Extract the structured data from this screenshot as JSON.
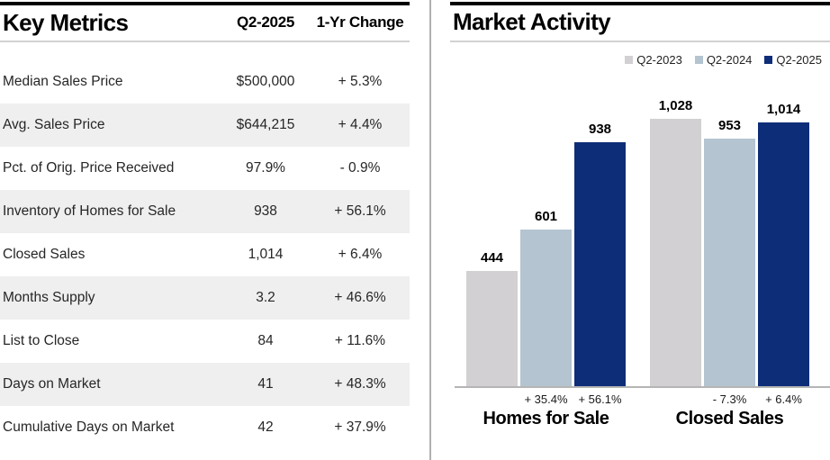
{
  "key_metrics": {
    "title": "Key Metrics",
    "columns": [
      "Q2-2025",
      "1-Yr Change"
    ],
    "rows": [
      {
        "label": "Median Sales Price",
        "value": "$500,000",
        "change": "+ 5.3%"
      },
      {
        "label": "Avg. Sales Price",
        "value": "$644,215",
        "change": "+ 4.4%"
      },
      {
        "label": "Pct. of Orig. Price Received",
        "value": "97.9%",
        "change": "- 0.9%"
      },
      {
        "label": "Inventory of Homes for Sale",
        "value": "938",
        "change": "+ 56.1%"
      },
      {
        "label": "Closed Sales",
        "value": "1,014",
        "change": "+ 6.4%"
      },
      {
        "label": "Months Supply",
        "value": "3.2",
        "change": "+ 46.6%"
      },
      {
        "label": "List to Close",
        "value": "84",
        "change": "+ 11.6%"
      },
      {
        "label": "Days on Market",
        "value": "41",
        "change": "+ 48.3%"
      },
      {
        "label": "Cumulative Days on Market",
        "value": "42",
        "change": "+ 37.9%"
      }
    ]
  },
  "chart_data": {
    "type": "bar",
    "title": "Market Activity",
    "categories": [
      "Homes for Sale",
      "Closed Sales"
    ],
    "series": [
      {
        "name": "Q2-2023",
        "color": "#d3d0d4",
        "values": [
          444,
          1028
        ]
      },
      {
        "name": "Q2-2024",
        "color": "#b4c4d1",
        "values": [
          601,
          953
        ]
      },
      {
        "name": "Q2-2025",
        "color": "#0e2d78",
        "values": [
          938,
          1014
        ]
      }
    ],
    "value_labels": [
      [
        "444",
        "601",
        "938"
      ],
      [
        "1,028",
        "953",
        "1,014"
      ]
    ],
    "pct_change_labels": [
      [
        "",
        "+ 35.4%",
        "+ 56.1%"
      ],
      [
        "",
        "- 7.3%",
        "+ 6.4%"
      ]
    ],
    "ylim": [
      0,
      1028
    ],
    "grid": false,
    "legend_position": "top-right"
  }
}
